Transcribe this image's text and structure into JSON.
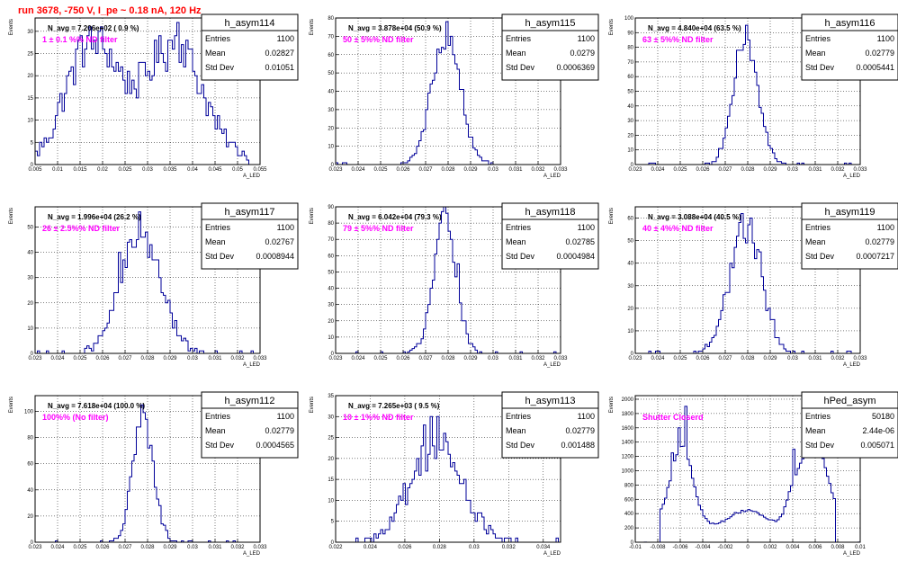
{
  "page": {
    "run_title": "run 3678,  -750 V, I_pe ~ 0.18 nA, 120 Hz"
  },
  "stat_labels": {
    "entries": "Entries",
    "mean": "Mean",
    "std": "Std Dev"
  },
  "chart_data": [
    {
      "type": "histogram",
      "name": "h_asym114",
      "navg_text": "N_avg = 7.206e+02 ( 0.9 %)",
      "filter_text": "1 ± 0.1 %% ND filter",
      "stats": {
        "entries": "1100",
        "mean": "0.02827",
        "std": "0.01051"
      },
      "xlabel": "A_LED",
      "ylabel": "Events",
      "xlim": [
        0.005,
        0.055
      ],
      "ylim": [
        0,
        33
      ],
      "xticks": [
        "0.005",
        "0.01",
        "0.015",
        "0.02",
        "0.025",
        "0.03",
        "0.035",
        "0.04",
        "0.045",
        "0.05",
        "0.055"
      ],
      "yticks": [
        "0",
        "5",
        "10",
        "15",
        "20",
        "25",
        "30"
      ],
      "profile": {
        "kind": "bimodal",
        "centers": [
          0.018,
          0.036
        ],
        "sigma": 0.006,
        "peak": 26
      },
      "spikes": [
        [
          0.0155,
          29
        ],
        [
          0.0175,
          26
        ],
        [
          0.0365,
          32
        ],
        [
          0.021,
          22
        ],
        [
          0.04,
          21
        ],
        [
          0.034,
          21
        ],
        [
          0.026,
          21
        ]
      ]
    },
    {
      "type": "histogram",
      "name": "h_asym115",
      "navg_text": "N_avg = 3.878e+04 (50.9 %)",
      "filter_text": "50 ± 5%% ND filter",
      "stats": {
        "entries": "1100",
        "mean": "0.0279",
        "std": "0.0006369"
      },
      "xlabel": "A_LED",
      "ylabel": "Events",
      "xlim": [
        0.023,
        0.033
      ],
      "ylim": [
        0,
        80
      ],
      "xticks": [
        "0.023",
        "0.024",
        "0.025",
        "0.026",
        "0.027",
        "0.028",
        "0.029",
        "0.03",
        "0.031",
        "0.032",
        "0.033"
      ],
      "yticks": [
        "0",
        "10",
        "20",
        "30",
        "40",
        "50",
        "60",
        "70",
        "80"
      ],
      "profile": {
        "kind": "gauss",
        "mean": 0.0279,
        "sigma": 0.00064,
        "peak": 68
      },
      "spikes": [
        [
          0.0279,
          78
        ],
        [
          0.0283,
          60
        ],
        [
          0.0287,
          41
        ]
      ]
    },
    {
      "type": "histogram",
      "name": "h_asym116",
      "navg_text": "N_avg = 4.840e+04 (63.5 %)",
      "filter_text": "63 ± 5%% ND filter",
      "stats": {
        "entries": "1100",
        "mean": "0.02779",
        "std": "0.0005441"
      },
      "xlabel": "A_LED",
      "ylabel": "Events",
      "xlim": [
        0.023,
        0.033
      ],
      "ylim": [
        0,
        100
      ],
      "xticks": [
        "0.023",
        "0.024",
        "0.025",
        "0.026",
        "0.027",
        "0.028",
        "0.029",
        "0.03",
        "0.031",
        "0.032",
        "0.033"
      ],
      "yticks": [
        "0",
        "10",
        "20",
        "30",
        "40",
        "50",
        "60",
        "70",
        "80",
        "90",
        "100"
      ],
      "profile": {
        "kind": "gauss",
        "mean": 0.0279,
        "sigma": 0.00055,
        "peak": 86
      },
      "spikes": [
        [
          0.0279,
          95
        ],
        [
          0.0281,
          85
        ],
        [
          0.0276,
          78
        ]
      ]
    },
    {
      "type": "histogram",
      "name": "h_asym117",
      "navg_text": "N_avg = 1.996e+04 (26.2 %)",
      "filter_text": "26 ± 2.5%% ND filter",
      "stats": {
        "entries": "1100",
        "mean": "0.02767",
        "std": "0.0008944"
      },
      "xlabel": "A_LED",
      "ylabel": "Events",
      "xlim": [
        0.023,
        0.033
      ],
      "ylim": [
        0,
        58
      ],
      "xticks": [
        "0.023",
        "0.024",
        "0.025",
        "0.026",
        "0.027",
        "0.028",
        "0.029",
        "0.03",
        "0.031",
        "0.032",
        "0.033"
      ],
      "yticks": [
        "0",
        "10",
        "20",
        "30",
        "40",
        "50"
      ],
      "profile": {
        "kind": "gauss",
        "mean": 0.0277,
        "sigma": 0.0009,
        "peak": 46
      },
      "spikes": [
        [
          0.0277,
          56
        ],
        [
          0.0272,
          44
        ],
        [
          0.0267,
          40
        ],
        [
          0.0285,
          30
        ]
      ]
    },
    {
      "type": "histogram",
      "name": "h_asym118",
      "navg_text": "N_avg = 6.042e+04 (79.3 %)",
      "filter_text": "79 ± 5%% ND filter",
      "stats": {
        "entries": "1100",
        "mean": "0.02785",
        "std": "0.0004984"
      },
      "xlabel": "A_LED",
      "ylabel": "Events",
      "xlim": [
        0.023,
        0.033
      ],
      "ylim": [
        0,
        90
      ],
      "xticks": [
        "0.023",
        "0.024",
        "0.025",
        "0.026",
        "0.027",
        "0.028",
        "0.029",
        "0.03",
        "0.031",
        "0.032",
        "0.033"
      ],
      "yticks": [
        "0",
        "10",
        "20",
        "30",
        "40",
        "50",
        "60",
        "70",
        "80",
        "90"
      ],
      "profile": {
        "kind": "gauss",
        "mean": 0.02785,
        "sigma": 0.0005,
        "peak": 82
      },
      "spikes": [
        [
          0.0279,
          86
        ],
        [
          0.0276,
          70
        ],
        [
          0.0284,
          55
        ]
      ]
    },
    {
      "type": "histogram",
      "name": "h_asym119",
      "navg_text": "N_avg = 3.088e+04 (40.5 %)",
      "filter_text": "40 ± 4%% ND filter",
      "stats": {
        "entries": "1100",
        "mean": "0.02779",
        "std": "0.0007217"
      },
      "xlabel": "A_LED",
      "ylabel": "Events",
      "xlim": [
        0.023,
        0.033
      ],
      "ylim": [
        0,
        65
      ],
      "xticks": [
        "0.023",
        "0.024",
        "0.025",
        "0.026",
        "0.027",
        "0.028",
        "0.029",
        "0.03",
        "0.031",
        "0.032",
        "0.033"
      ],
      "yticks": [
        "0",
        "10",
        "20",
        "30",
        "40",
        "50",
        "60"
      ],
      "profile": {
        "kind": "gauss",
        "mean": 0.0279,
        "sigma": 0.00072,
        "peak": 55
      },
      "spikes": [
        [
          0.0278,
          62
        ],
        [
          0.0282,
          60
        ],
        [
          0.0285,
          45
        ],
        [
          0.0275,
          52
        ]
      ]
    },
    {
      "type": "histogram",
      "name": "h_asym112",
      "navg_text": "N_avg = 7.618e+04 (100.0 %)",
      "filter_text": "100%% (No filter)",
      "stats": {
        "entries": "1100",
        "mean": "0.02779",
        "std": "0.0004565"
      },
      "xlabel": "A_LED",
      "ylabel": "Events",
      "xlim": [
        0.023,
        0.033
      ],
      "ylim": [
        0,
        112
      ],
      "xticks": [
        "0.023",
        "0.024",
        "0.025",
        "0.026",
        "0.027",
        "0.028",
        "0.029",
        "0.03",
        "0.031",
        "0.032",
        "0.033"
      ],
      "yticks": [
        "0",
        "20",
        "40",
        "60",
        "80",
        "100"
      ],
      "profile": {
        "kind": "gauss",
        "mean": 0.0278,
        "sigma": 0.00046,
        "peak": 92
      },
      "spikes": [
        [
          0.0278,
          105
        ],
        [
          0.0276,
          88
        ],
        [
          0.0281,
          72
        ]
      ]
    },
    {
      "type": "histogram",
      "name": "h_asym113",
      "navg_text": "N_avg = 7.265e+03 ( 9.5 %)",
      "filter_text": "10 ± 1%% ND filter",
      "stats": {
        "entries": "1100",
        "mean": "0.02779",
        "std": "0.001488"
      },
      "xlabel": "A_LED",
      "ylabel": "Events",
      "xlim": [
        0.022,
        0.035
      ],
      "ylim": [
        0,
        35
      ],
      "xticks": [
        "0.022",
        "0.024",
        "0.026",
        "0.028",
        "0.03",
        "0.032",
        "0.034"
      ],
      "yticks": [
        "0",
        "5",
        "10",
        "15",
        "20",
        "25",
        "30",
        "35"
      ],
      "profile": {
        "kind": "gauss",
        "mean": 0.0278,
        "sigma": 0.0015,
        "peak": 23
      },
      "spikes": [
        [
          0.0275,
          30
        ],
        [
          0.0279,
          30
        ],
        [
          0.0271,
          28
        ],
        [
          0.0283,
          26
        ]
      ]
    },
    {
      "type": "histogram",
      "name": "hPed_asym",
      "navg_text": "",
      "filter_text": "Shutter Closerd",
      "stats": {
        "entries": "50180",
        "mean": "2.44e-06",
        "std": "0.005071"
      },
      "xlabel": "A_LED",
      "ylabel": "Events",
      "xlim": [
        -0.01,
        0.01
      ],
      "ylim": [
        0,
        2050
      ],
      "xticks": [
        "-0.01",
        "-0.008",
        "-0.006",
        "-0.004",
        "-0.002",
        "0",
        "0.002",
        "0.004",
        "0.006",
        "0.008",
        "0.01"
      ],
      "yticks": [
        "0",
        "200",
        "400",
        "600",
        "800",
        "1000",
        "1200",
        "1400",
        "1600",
        "1800",
        "2000"
      ],
      "profile": {
        "kind": "pedestal",
        "range": [
          -0.0078,
          0.0078
        ]
      },
      "spikes": [
        [
          -0.0056,
          1900
        ],
        [
          -0.0061,
          1600
        ],
        [
          0.0063,
          1700
        ],
        [
          0.0041,
          1300
        ],
        [
          -0.0068,
          1250
        ]
      ]
    }
  ]
}
